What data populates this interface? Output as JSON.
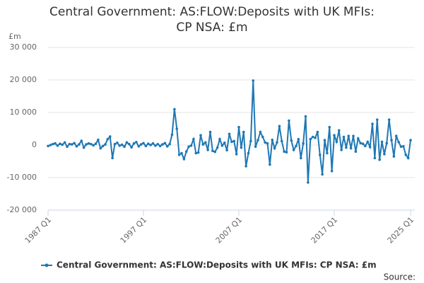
{
  "chart_data": {
    "type": "line",
    "title": "Central Government: AS:FLOW:Deposits with UK MFIs: CP NSA: £m",
    "y_unit": "£m",
    "source": "Source:",
    "legend": "bottom",
    "grid": true,
    "ylim": [
      -20000,
      30000
    ],
    "yticks": [
      {
        "value": -20000,
        "label": "-20 000"
      },
      {
        "value": -10000,
        "label": "-10 000"
      },
      0,
      {
        "value": 10000,
        "label": "10 000"
      },
      {
        "value": 20000,
        "label": "20 000"
      },
      {
        "value": 30000,
        "label": "30 000"
      }
    ],
    "categories": [
      "1987 Q1",
      null,
      null,
      null,
      null,
      null,
      null,
      null,
      null,
      null,
      null,
      null,
      null,
      null,
      null,
      null,
      null,
      null,
      null,
      null,
      null,
      null,
      null,
      null,
      null,
      null,
      null,
      null,
      null,
      null,
      null,
      null,
      null,
      null,
      null,
      null,
      null,
      null,
      null,
      null,
      "1997 Q1",
      null,
      null,
      null,
      null,
      null,
      null,
      null,
      null,
      null,
      null,
      null,
      null,
      null,
      null,
      null,
      null,
      null,
      null,
      null,
      null,
      null,
      null,
      null,
      null,
      null,
      null,
      null,
      null,
      null,
      null,
      null,
      null,
      null,
      null,
      null,
      null,
      null,
      null,
      null,
      "2007 Q1",
      null,
      null,
      null,
      null,
      null,
      null,
      null,
      null,
      null,
      null,
      null,
      null,
      null,
      null,
      null,
      null,
      null,
      null,
      null,
      null,
      null,
      null,
      null,
      null,
      null,
      null,
      null,
      null,
      null,
      null,
      null,
      null,
      null,
      null,
      null,
      null,
      null,
      null,
      null,
      "2017 Q1",
      null,
      null,
      null,
      null,
      null,
      null,
      null,
      null,
      null,
      null,
      null,
      null,
      null,
      null,
      null,
      null,
      null,
      null,
      null,
      null,
      null,
      null,
      null,
      null,
      null,
      null,
      null,
      null,
      null,
      null,
      null,
      "2025 Q1"
    ],
    "series": [
      {
        "name": "Central Government: AS:FLOW:Deposits with UK MFIs: CP NSA: £m",
        "color": "#1f78b4",
        "values": [
          -300,
          0,
          300,
          500,
          -200,
          400,
          100,
          800,
          -500,
          300,
          200,
          600,
          -400,
          200,
          1300,
          -800,
          200,
          500,
          300,
          -100,
          400,
          1600,
          -1000,
          -300,
          200,
          1800,
          2600,
          -4000,
          300,
          700,
          -200,
          100,
          -500,
          800,
          300,
          -700,
          500,
          900,
          -400,
          200,
          600,
          -300,
          400,
          0,
          500,
          -200,
          300,
          -300,
          200,
          600,
          -400,
          300,
          3200,
          11000,
          5000,
          -3000,
          -2500,
          -4300,
          -2000,
          -500,
          -200,
          1800,
          -2500,
          -2300,
          3000,
          200,
          800,
          -1500,
          4000,
          -1800,
          -2100,
          -800,
          1800,
          -200,
          700,
          -1600,
          3400,
          1000,
          1200,
          -2800,
          5500,
          -800,
          4000,
          -6500,
          -2500,
          1200,
          19800,
          -500,
          1500,
          4000,
          2500,
          800,
          500,
          -6000,
          1600,
          -1000,
          800,
          5800,
          1200,
          -2000,
          -2200,
          7500,
          1400,
          -1500,
          -300,
          1800,
          -4000,
          500,
          8800,
          -11500,
          1800,
          2500,
          2200,
          4000,
          -3000,
          -9000,
          1500,
          -2500,
          5500,
          -8000,
          3000,
          1000,
          4500,
          -1500,
          2500,
          -800,
          2800,
          -1000,
          2800,
          -2000,
          2000,
          600,
          400,
          -300,
          1000,
          -600,
          6500,
          -4000,
          7800,
          -4500,
          1000,
          -2800,
          600,
          7800,
          1500,
          -3500,
          2800,
          900,
          -500,
          -400,
          -3000,
          -4000,
          1500
        ]
      }
    ]
  }
}
